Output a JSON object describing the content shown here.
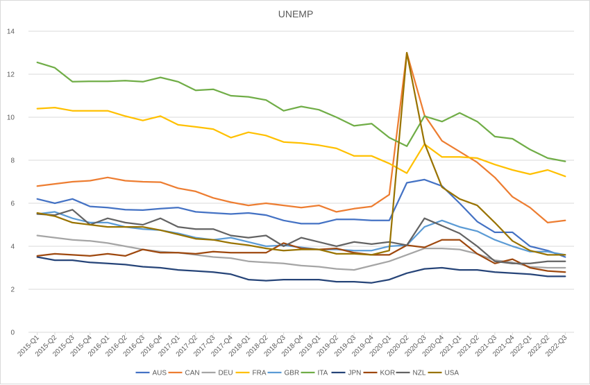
{
  "chart_data": {
    "type": "line",
    "title": "UNEMP",
    "xlabel": "",
    "ylabel": "",
    "ylim": [
      0,
      14
    ],
    "yticks": [
      0,
      2,
      4,
      6,
      8,
      10,
      12,
      14
    ],
    "grid": "horizontal",
    "legend_position": "bottom",
    "categories": [
      "2015-Q1",
      "2015-Q2",
      "2015-Q3",
      "2015-Q4",
      "2016-Q1",
      "2016-Q2",
      "2016-Q3",
      "2016-Q4",
      "2017-Q1",
      "2017-Q2",
      "2017-Q3",
      "2017-Q4",
      "2018-Q1",
      "2018-Q2",
      "2018-Q3",
      "2018-Q4",
      "2019-Q1",
      "2019-Q2",
      "2019-Q3",
      "2019-Q4",
      "2020-Q1",
      "2020-Q2",
      "2020-Q3",
      "2020-Q4",
      "2021-Q1",
      "2021-Q2",
      "2021-Q3",
      "2021-Q4",
      "2022-Q1",
      "2022-Q2",
      "2022-Q3"
    ],
    "series": [
      {
        "name": "AUS",
        "color": "#4472c4",
        "values": [
          6.2,
          6.0,
          6.2,
          5.85,
          5.8,
          5.7,
          5.68,
          5.75,
          5.8,
          5.6,
          5.55,
          5.5,
          5.55,
          5.45,
          5.2,
          5.05,
          5.05,
          5.25,
          5.25,
          5.2,
          5.2,
          6.95,
          7.1,
          6.8,
          6.0,
          5.15,
          4.65,
          4.65,
          4.0,
          3.8,
          3.5
        ]
      },
      {
        "name": "CAN",
        "color": "#ed7d31",
        "values": [
          6.8,
          6.9,
          7.0,
          7.05,
          7.2,
          7.05,
          7.0,
          6.98,
          6.7,
          6.55,
          6.25,
          6.05,
          5.9,
          6.0,
          5.9,
          5.8,
          5.9,
          5.6,
          5.75,
          5.85,
          6.4,
          13.0,
          10.1,
          8.9,
          8.4,
          7.9,
          7.2,
          6.3,
          5.8,
          5.1,
          5.2
        ]
      },
      {
        "name": "DEU",
        "color": "#a5a5a5",
        "values": [
          4.5,
          4.4,
          4.3,
          4.25,
          4.15,
          4.0,
          3.85,
          3.75,
          3.7,
          3.6,
          3.5,
          3.45,
          3.3,
          3.25,
          3.2,
          3.1,
          3.05,
          2.95,
          2.9,
          3.1,
          3.3,
          3.6,
          3.9,
          3.9,
          3.85,
          3.65,
          3.35,
          3.25,
          3.05,
          3.0,
          3.0
        ]
      },
      {
        "name": "FRA",
        "color": "#ffc000",
        "values": [
          10.4,
          10.45,
          10.3,
          10.3,
          10.3,
          10.05,
          9.85,
          10.05,
          9.65,
          9.55,
          9.45,
          9.05,
          9.3,
          9.15,
          8.85,
          8.8,
          8.7,
          8.55,
          8.2,
          8.2,
          7.85,
          7.4,
          8.75,
          8.15,
          8.15,
          8.1,
          7.8,
          7.55,
          7.35,
          7.55,
          7.25
        ]
      },
      {
        "name": "GBR",
        "color": "#5b9bd5",
        "values": [
          5.5,
          5.6,
          5.3,
          5.1,
          5.1,
          4.9,
          4.8,
          4.75,
          4.6,
          4.4,
          4.3,
          4.4,
          4.2,
          4.0,
          4.05,
          3.95,
          3.85,
          3.85,
          3.8,
          3.8,
          4.0,
          4.05,
          4.9,
          5.2,
          4.9,
          4.7,
          4.3,
          4.0,
          3.75,
          3.75,
          3.6
        ]
      },
      {
        "name": "ITA",
        "color": "#70ad47",
        "values": [
          12.55,
          12.3,
          11.65,
          11.67,
          11.67,
          11.7,
          11.65,
          11.85,
          11.65,
          11.25,
          11.3,
          11.0,
          10.95,
          10.8,
          10.3,
          10.5,
          10.35,
          10.0,
          9.6,
          9.7,
          9.05,
          8.65,
          10.05,
          9.8,
          10.2,
          9.8,
          9.1,
          9.0,
          8.5,
          8.1,
          7.95
        ]
      },
      {
        "name": "JPN",
        "color": "#264478",
        "values": [
          3.5,
          3.35,
          3.35,
          3.25,
          3.2,
          3.15,
          3.05,
          3.0,
          2.9,
          2.85,
          2.8,
          2.7,
          2.45,
          2.4,
          2.45,
          2.45,
          2.45,
          2.35,
          2.35,
          2.3,
          2.45,
          2.75,
          2.95,
          3.0,
          2.9,
          2.9,
          2.8,
          2.75,
          2.7,
          2.6,
          2.6
        ]
      },
      {
        "name": "KOR",
        "color": "#9e480e",
        "values": [
          3.55,
          3.65,
          3.6,
          3.55,
          3.65,
          3.55,
          3.85,
          3.7,
          3.7,
          3.65,
          3.75,
          3.7,
          3.7,
          3.7,
          4.15,
          3.9,
          3.85,
          3.9,
          3.7,
          3.6,
          3.6,
          4.05,
          3.95,
          4.3,
          4.3,
          3.65,
          3.2,
          3.4,
          3.0,
          2.85,
          2.8
        ]
      },
      {
        "name": "NZL",
        "color": "#636363",
        "values": [
          5.5,
          5.45,
          5.7,
          5.0,
          5.3,
          5.1,
          5.0,
          5.3,
          4.9,
          4.8,
          4.8,
          4.5,
          4.4,
          4.5,
          4.0,
          4.4,
          4.2,
          4.0,
          4.2,
          4.1,
          4.2,
          4.05,
          5.3,
          4.95,
          4.6,
          4.0,
          3.3,
          3.2,
          3.2,
          3.3,
          3.3
        ]
      },
      {
        "name": "USA",
        "color": "#997300",
        "values": [
          5.55,
          5.4,
          5.1,
          5.0,
          4.9,
          4.9,
          4.9,
          4.75,
          4.55,
          4.35,
          4.3,
          4.15,
          4.05,
          3.9,
          3.8,
          3.85,
          3.85,
          3.65,
          3.65,
          3.6,
          3.8,
          13.0,
          8.8,
          6.75,
          6.2,
          5.9,
          5.1,
          4.25,
          3.8,
          3.6,
          3.6
        ]
      }
    ]
  }
}
